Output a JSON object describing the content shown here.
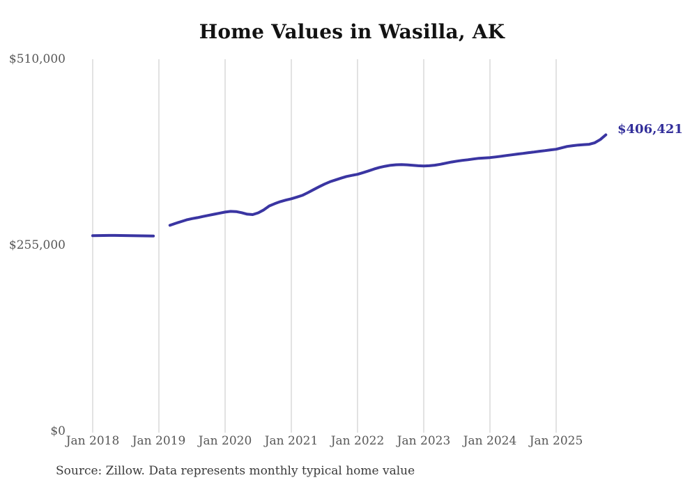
{
  "title": "Home Values in Wasilla, AK",
  "annotations": {
    "end_value_label": "$406,421"
  },
  "source_note": "Source: Zillow. Data represents monthly typical home value",
  "y_axis": {
    "ticks": [
      "$510,000",
      "$255,000",
      "$0"
    ]
  },
  "x_axis": {
    "ticks": [
      "Jan 2018",
      "Jan 2019",
      "Jan 2020",
      "Jan 2021",
      "Jan 2022",
      "Jan 2023",
      "Jan 2024",
      "Jan 2025"
    ]
  },
  "colors": {
    "line": "#3a35a2",
    "end_label": "#322e9a",
    "grid": "#cfcfcf",
    "axis_text": "#575757",
    "title_text": "#121212",
    "source_text": "#3a3a3a",
    "background": "#ffffff"
  },
  "chart_data": {
    "type": "line",
    "title": "Home Values in Wasilla, AK",
    "series_name": "Monthly typical home value",
    "unit": "USD",
    "frequency": "monthly",
    "start_month": "2018-01",
    "end_month": "2025-10",
    "missing_months": [
      "2019-01",
      "2019-02"
    ],
    "ylim": [
      0,
      510000
    ],
    "y_tick_values": [
      510000,
      255000,
      0
    ],
    "x_tick_months": [
      "2018-01",
      "2019-01",
      "2020-01",
      "2021-01",
      "2022-01",
      "2023-01",
      "2024-01",
      "2025-01"
    ],
    "grid": "vertical-only",
    "legend": "none",
    "final_value": 406421,
    "values": [
      268100,
      268300,
      268400,
      268500,
      268500,
      268400,
      268300,
      268100,
      268000,
      267900,
      267800,
      267700,
      null,
      null,
      282300,
      285000,
      287400,
      289800,
      291500,
      292800,
      294400,
      296000,
      297500,
      299000,
      300500,
      301400,
      301100,
      299600,
      297600,
      297000,
      299400,
      303400,
      308900,
      312000,
      314800,
      316900,
      318700,
      321000,
      323400,
      327100,
      331100,
      335000,
      338800,
      342000,
      344500,
      347000,
      349300,
      350800,
      352200,
      354500,
      356900,
      359500,
      361700,
      363300,
      364600,
      365300,
      365600,
      365200,
      364600,
      364000,
      363600,
      364000,
      364700,
      366000,
      367500,
      369000,
      370300,
      371300,
      372200,
      373200,
      374200,
      374700,
      375100,
      376000,
      377000,
      378000,
      379000,
      380000,
      380900,
      381900,
      382800,
      383800,
      384700,
      385700,
      386600,
      388500,
      390400,
      391500,
      392300,
      392900,
      393400,
      395500,
      399900,
      406421
    ]
  }
}
